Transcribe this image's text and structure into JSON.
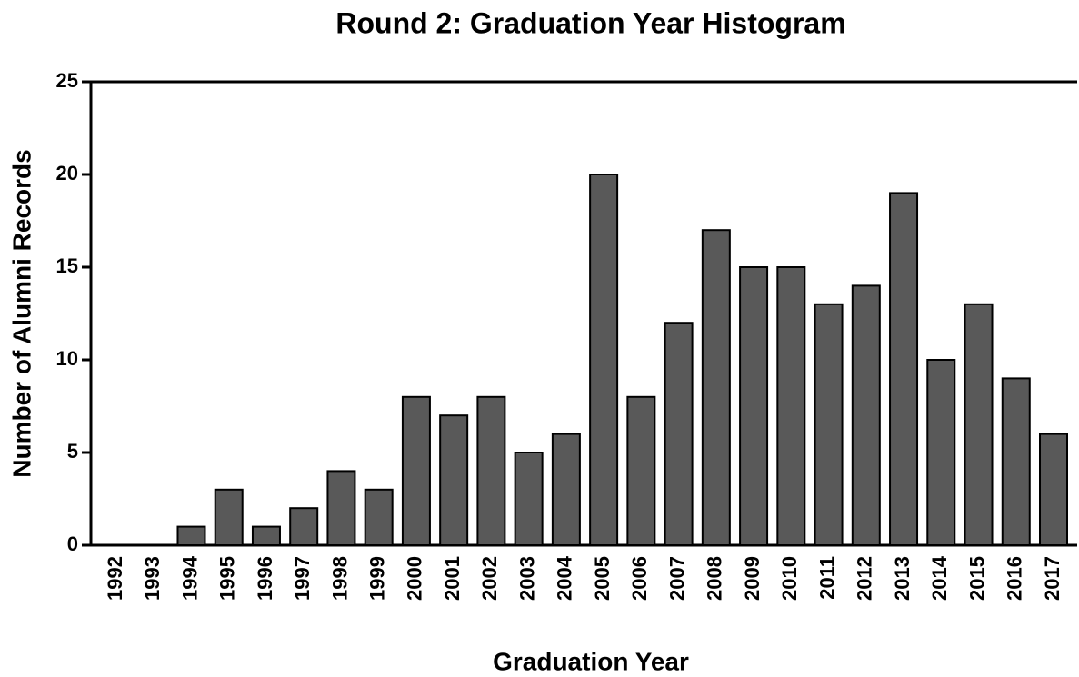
{
  "chart_data": {
    "type": "bar",
    "title": "Round 2: Graduation Year Histogram",
    "xlabel": "Graduation Year",
    "ylabel": "Number of Alumni Records",
    "categories": [
      "1992",
      "1993",
      "1994",
      "1995",
      "1996",
      "1997",
      "1998",
      "1999",
      "2000",
      "2001",
      "2002",
      "2003",
      "2004",
      "2005",
      "2006",
      "2007",
      "2008",
      "2009",
      "2010",
      "2011",
      "2012",
      "2013",
      "2014",
      "2015",
      "2016",
      "2017"
    ],
    "values": [
      0,
      0,
      1,
      3,
      1,
      2,
      4,
      3,
      8,
      7,
      8,
      5,
      6,
      20,
      8,
      12,
      17,
      15,
      15,
      13,
      14,
      19,
      10,
      13,
      9,
      6
    ],
    "color": "#595959",
    "ylim": [
      0,
      25
    ],
    "yticks": [
      0,
      5,
      10,
      15,
      20,
      25
    ]
  }
}
